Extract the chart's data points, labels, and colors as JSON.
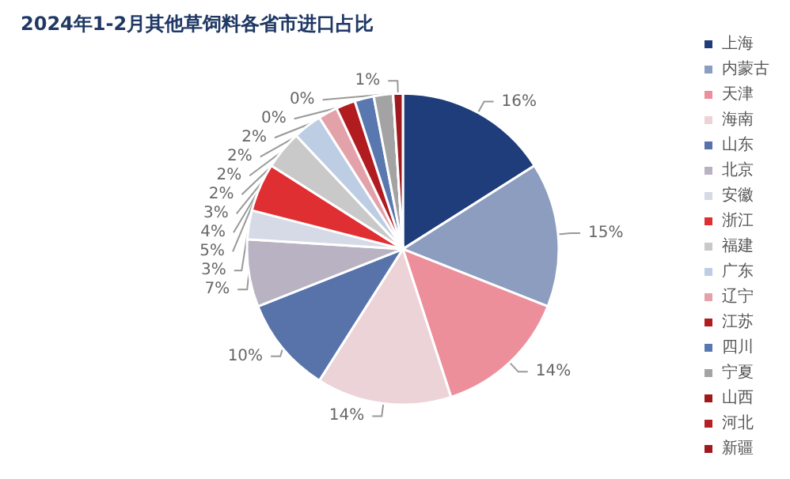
{
  "chart_data": {
    "type": "pie",
    "title": "2024年1-2月其他草饲料各省市进口占比",
    "categories": [
      "上海",
      "内蒙古",
      "天津",
      "海南",
      "山东",
      "北京",
      "安徽",
      "浙江",
      "福建",
      "广东",
      "辽宁",
      "江苏",
      "四川",
      "宁夏",
      "山西",
      "河北",
      "新疆"
    ],
    "values": [
      16,
      15,
      14,
      14,
      10,
      7,
      3,
      5,
      4,
      3,
      2,
      2,
      2,
      2,
      0,
      0,
      1
    ],
    "colors": [
      "#1f3d7a",
      "#8c9dc0",
      "#ec8f9b",
      "#ecd3d7",
      "#5773aa",
      "#b9b2c2",
      "#d6d9e6",
      "#e02f33",
      "#c9c9c9",
      "#bccde4",
      "#e3a2aa",
      "#b01c20",
      "#5a78b0",
      "#a3a3a3",
      "#a01818",
      "#b52024",
      "#9e1a1e"
    ],
    "value_labels": [
      "16%",
      "15%",
      "14%",
      "14%",
      "10%",
      "7%",
      "3%",
      "5%",
      "4%",
      "3%",
      "2%",
      "2%",
      "2%",
      "2%",
      "0%",
      "0%",
      "1%"
    ],
    "legend": "right"
  }
}
